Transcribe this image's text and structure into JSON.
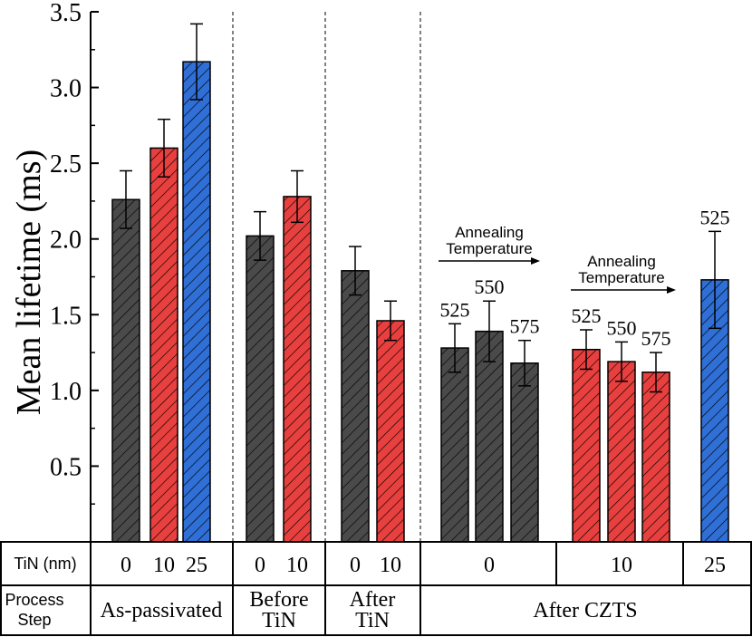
{
  "chart_data": {
    "type": "bar",
    "title": "",
    "xlabel": "",
    "ylabel": "Mean lifetime (ms)",
    "ylim": [
      0,
      3.5
    ],
    "yticks": [
      "0.5",
      "1.0",
      "1.5",
      "2.0",
      "2.5",
      "3.0",
      "3.5"
    ],
    "grid": false,
    "colors": {
      "0": "#4a4a4a",
      "10": "#e8403f",
      "25": "#2f6fd6"
    },
    "bars": [
      {
        "group": "As-passivated",
        "tin": "0",
        "value": 2.26,
        "err": 0.19,
        "label": ""
      },
      {
        "group": "As-passivated",
        "tin": "10",
        "value": 2.6,
        "err": 0.19,
        "label": ""
      },
      {
        "group": "As-passivated",
        "tin": "25",
        "value": 3.17,
        "err": 0.25,
        "label": ""
      },
      {
        "group": "Before TiN",
        "tin": "0",
        "value": 2.02,
        "err": 0.16,
        "label": ""
      },
      {
        "group": "Before TiN",
        "tin": "10",
        "value": 2.28,
        "err": 0.17,
        "label": ""
      },
      {
        "group": "After TiN",
        "tin": "0",
        "value": 1.79,
        "err": 0.16,
        "label": ""
      },
      {
        "group": "After TiN",
        "tin": "10",
        "value": 1.46,
        "err": 0.13,
        "label": ""
      },
      {
        "group": "After CZTS",
        "tin": "0",
        "value": 1.28,
        "err": 0.16,
        "label": "525"
      },
      {
        "group": "After CZTS",
        "tin": "0",
        "value": 1.39,
        "err": 0.2,
        "label": "550"
      },
      {
        "group": "After CZTS",
        "tin": "0",
        "value": 1.18,
        "err": 0.15,
        "label": "575"
      },
      {
        "group": "After CZTS",
        "tin": "10",
        "value": 1.27,
        "err": 0.13,
        "label": "525"
      },
      {
        "group": "After CZTS",
        "tin": "10",
        "value": 1.19,
        "err": 0.13,
        "label": "550"
      },
      {
        "group": "After CZTS",
        "tin": "10",
        "value": 1.12,
        "err": 0.13,
        "label": "575"
      },
      {
        "group": "After CZTS",
        "tin": "25",
        "value": 1.73,
        "err": 0.32,
        "label": "525"
      }
    ],
    "annotations": [
      {
        "line1": "Annealing",
        "line2": "Temperature"
      },
      {
        "line1": "Annealing",
        "line2": "Temperature"
      }
    ],
    "table": {
      "row1_header": "TiN (nm)",
      "row1_cells": [
        "0",
        "10",
        "25",
        "0",
        "10",
        "0",
        "10",
        "0",
        "10",
        "25"
      ],
      "row2_header": [
        "Process",
        "Step"
      ],
      "row2_cells": [
        {
          "lines": [
            "As-passivated"
          ]
        },
        {
          "lines": [
            "Before",
            "TiN"
          ]
        },
        {
          "lines": [
            "After",
            "TiN"
          ]
        },
        {
          "lines": [
            "After CZTS"
          ]
        }
      ]
    }
  }
}
